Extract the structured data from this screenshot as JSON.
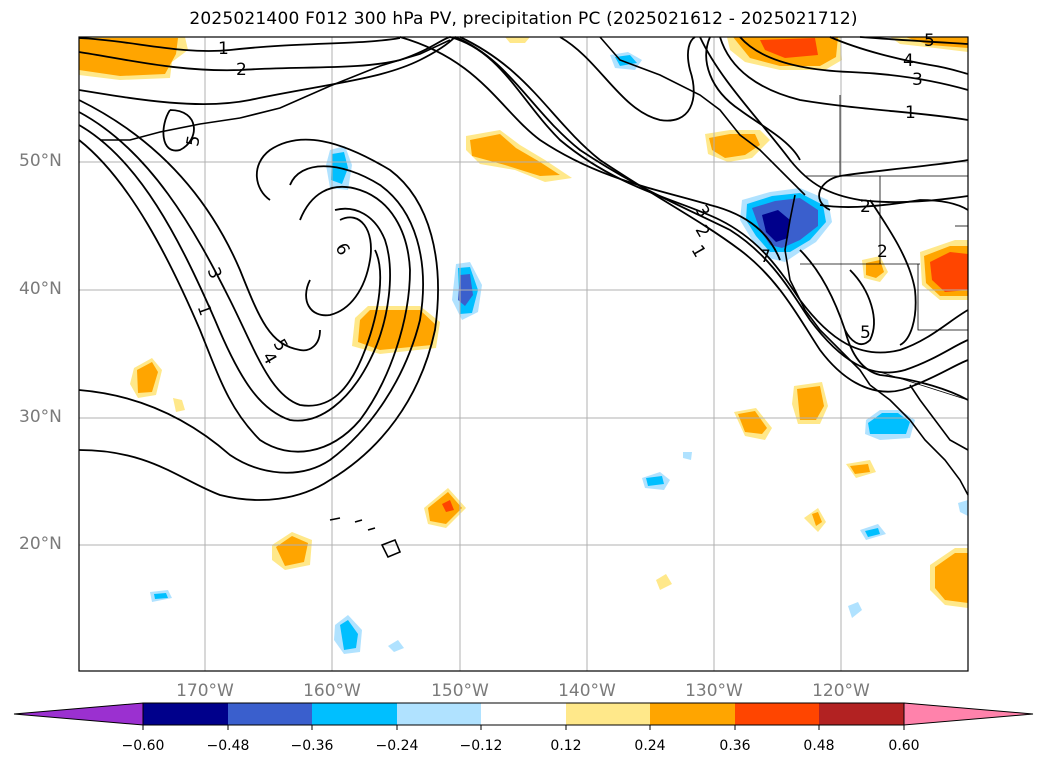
{
  "title": "2025021400 F012 300 hPa PV, precipitation PC (2025021612 - 2025021712)",
  "lat_labels": [
    "50°N",
    "40°N",
    "30°N",
    "20°N"
  ],
  "lon_labels": [
    "170°W",
    "160°W",
    "150°W",
    "140°W",
    "130°W",
    "120°W"
  ],
  "colorbar": {
    "levels": [
      "−0.60",
      "−0.48",
      "−0.36",
      "−0.24",
      "−0.12",
      "0.12",
      "0.24",
      "0.36",
      "0.48",
      "0.60"
    ],
    "colors": [
      "#9b30d0",
      "#00008b",
      "#3a5fcd",
      "#00bfff",
      "#b0e2ff",
      "#ffffff",
      "#ffe88a",
      "#ffa500",
      "#ff4500",
      "#b22222",
      "#ff82ab"
    ]
  },
  "contour_labels": [
    "1",
    "2",
    "5",
    "3",
    "1",
    "6",
    "5",
    "4",
    "3",
    "2",
    "1",
    "3",
    "4",
    "5",
    "1",
    "2",
    "2",
    "5",
    "7"
  ],
  "colors": {
    "grid": "#b0b0b0",
    "coast": "#000000",
    "contour": "#000000",
    "axis_text": "#7a7a7a"
  }
}
